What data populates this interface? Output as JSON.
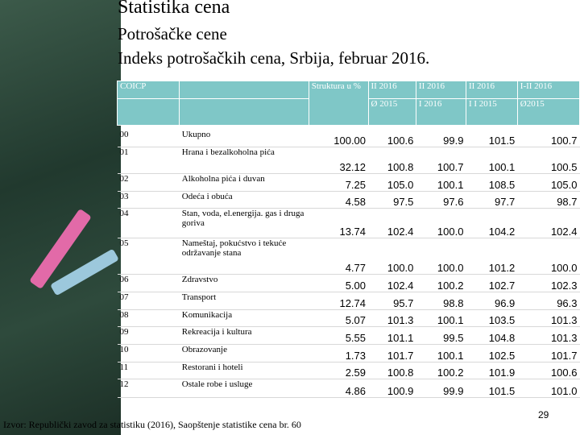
{
  "header": {
    "title": "Statistika cena",
    "subtitle": "Potrošačke cene",
    "heading": "Indeks potrošačkih cena, Srbija, februar 2016."
  },
  "table": {
    "columns": [
      "COICP",
      "Struktura u %",
      "II 2016",
      "II 2016",
      "II 2016",
      "I-II 2016"
    ],
    "subcolumns": [
      "Ø 2015",
      "I 2016",
      "I I 2015",
      "Ø2015"
    ],
    "rows": [
      [
        "00",
        "Ukupno",
        "100.00",
        "100.6",
        "99.9",
        "101.5",
        "100.7"
      ],
      [
        "01",
        "Hrana i bezalkoholna pića",
        "32.12",
        "100.8",
        "100.7",
        "100.1",
        "100.5"
      ],
      [
        "02",
        "Alkoholna pića i duvan",
        "7.25",
        "105.0",
        "100.1",
        "108.5",
        "105.0"
      ],
      [
        "03",
        "Odeća i obuća",
        "4.58",
        "97.5",
        "97.6",
        "97.7",
        "98.7"
      ],
      [
        "04",
        "Stan, voda, el.energija. gas i druga goriva",
        "13.74",
        "102.4",
        "100.0",
        "104.2",
        "102.4"
      ],
      [
        "05",
        "Nameštaj, pokućstvo i tekuće održavanje stana",
        "4.77",
        "100.0",
        "100.0",
        "101.2",
        "100.0"
      ],
      [
        "06",
        "Zdravstvo",
        "5.00",
        "102.4",
        "100.2",
        "102.7",
        "102.3"
      ],
      [
        "07",
        "Transport",
        "12.74",
        "95.7",
        "98.8",
        "96.9",
        "96.3"
      ],
      [
        "08",
        "Komunikacija",
        "5.07",
        "101.3",
        "100.1",
        "103.5",
        "101.3"
      ],
      [
        "09",
        "Rekreacija i kultura",
        "5.55",
        "101.1",
        "99.5",
        "104.8",
        "101.3"
      ],
      [
        "10",
        "Obrazovanje",
        "1.73",
        "101.7",
        "100.1",
        "102.5",
        "101.7"
      ],
      [
        "11",
        "Restorani i hoteli",
        "2.59",
        "100.8",
        "100.2",
        "101.9",
        "100.6"
      ],
      [
        "12",
        "Ostale robe i usluge",
        "4.86",
        "100.9",
        "99.9",
        "101.5",
        "101.0"
      ]
    ]
  },
  "footer": {
    "source": "Izvor: Republički zavod za statistiku (2016), Saopštenje statistike cena br. 60",
    "page": "29"
  }
}
